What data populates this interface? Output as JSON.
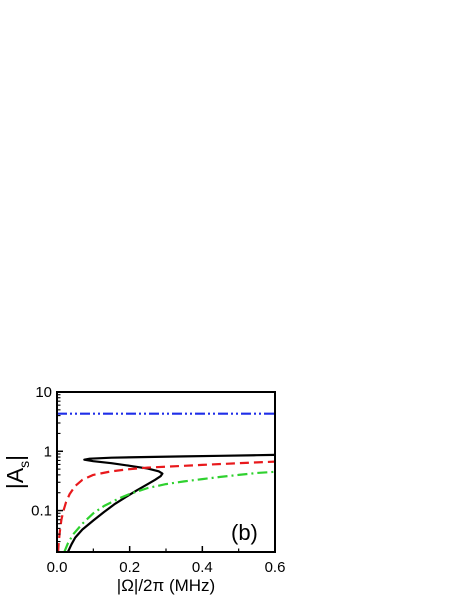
{
  "chart_data": {
    "type": "line",
    "panel_label": "(b)",
    "xlabel": "|Ω|/2π (MHz)",
    "ylabel": {
      "main": "|A",
      "subscript": "s",
      "close": "|"
    },
    "xlim": [
      0.0,
      0.6
    ],
    "ylim": [
      0.02,
      10
    ],
    "yscale": "log",
    "grid": false,
    "x_ticks": [
      0.0,
      0.2,
      0.4,
      0.6
    ],
    "x_tick_labels": [
      "0.0",
      "0.2",
      "0.4",
      "0.6"
    ],
    "y_ticks": [
      0.1,
      1,
      10
    ],
    "y_tick_labels": [
      "0.1",
      "1",
      "10"
    ],
    "series": [
      {
        "style": "solid",
        "color": "#000000",
        "points": [
          [
            0.03,
            0.02
          ],
          [
            0.04,
            0.027
          ],
          [
            0.05,
            0.035
          ],
          [
            0.07,
            0.048
          ],
          [
            0.1,
            0.068
          ],
          [
            0.13,
            0.095
          ],
          [
            0.16,
            0.13
          ],
          [
            0.19,
            0.17
          ],
          [
            0.22,
            0.22
          ],
          [
            0.25,
            0.28
          ],
          [
            0.27,
            0.33
          ],
          [
            0.285,
            0.38
          ],
          [
            0.29,
            0.42
          ],
          [
            0.28,
            0.46
          ],
          [
            0.25,
            0.51
          ],
          [
            0.2,
            0.57
          ],
          [
            0.15,
            0.63
          ],
          [
            0.1,
            0.68
          ],
          [
            0.075,
            0.72
          ],
          [
            0.09,
            0.75
          ],
          [
            0.15,
            0.78
          ],
          [
            0.25,
            0.8
          ],
          [
            0.35,
            0.82
          ],
          [
            0.45,
            0.84
          ],
          [
            0.55,
            0.86
          ],
          [
            0.6,
            0.87
          ]
        ]
      },
      {
        "style": "dashed",
        "color": "#e8191c",
        "points": [
          [
            0.003,
            0.02
          ],
          [
            0.005,
            0.03
          ],
          [
            0.008,
            0.045
          ],
          [
            0.012,
            0.07
          ],
          [
            0.018,
            0.1
          ],
          [
            0.025,
            0.14
          ],
          [
            0.035,
            0.19
          ],
          [
            0.05,
            0.26
          ],
          [
            0.07,
            0.33
          ],
          [
            0.1,
            0.4
          ],
          [
            0.15,
            0.46
          ],
          [
            0.2,
            0.5
          ],
          [
            0.25,
            0.53
          ],
          [
            0.3,
            0.55
          ],
          [
            0.4,
            0.59
          ],
          [
            0.5,
            0.63
          ],
          [
            0.6,
            0.67
          ]
        ]
      },
      {
        "style": "dash-dot",
        "color": "#2fd12f",
        "points": [
          [
            0.02,
            0.02
          ],
          [
            0.03,
            0.028
          ],
          [
            0.045,
            0.04
          ],
          [
            0.07,
            0.06
          ],
          [
            0.1,
            0.09
          ],
          [
            0.13,
            0.12
          ],
          [
            0.17,
            0.16
          ],
          [
            0.2,
            0.19
          ],
          [
            0.25,
            0.24
          ],
          [
            0.3,
            0.28
          ],
          [
            0.35,
            0.31
          ],
          [
            0.4,
            0.34
          ],
          [
            0.45,
            0.37
          ],
          [
            0.5,
            0.4
          ],
          [
            0.55,
            0.43
          ],
          [
            0.6,
            0.45
          ]
        ]
      },
      {
        "style": "dash-dot-dot",
        "color": "#1f2ee8",
        "points": [
          [
            0.0,
            4.3
          ],
          [
            0.6,
            4.3
          ]
        ]
      }
    ]
  }
}
